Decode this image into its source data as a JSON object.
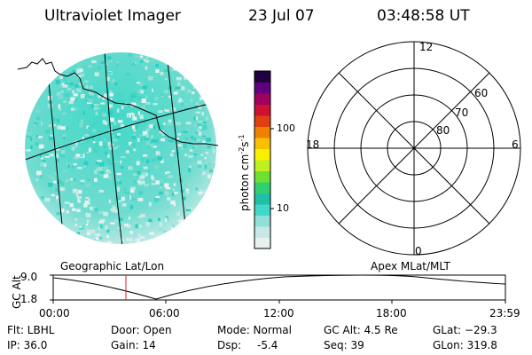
{
  "header": {
    "title": "Ultraviolet Imager",
    "date": "23 Jul 07",
    "time": "03:48:58 UT"
  },
  "left_panel": {
    "caption": "Geographic Lat/Lon"
  },
  "right_panel": {
    "caption": "Apex MLat/MLT",
    "mlt_labels": [
      "12",
      "18",
      "6",
      "0"
    ],
    "lat_labels": [
      "80",
      "70",
      "60"
    ]
  },
  "colorbar": {
    "unit_label": "photon cm",
    "unit_sup1": "-2",
    "unit_mid": "s",
    "unit_sup2": "-1",
    "ticks": [
      "100",
      "10"
    ],
    "colors": [
      "#e8f0f0",
      "#c8e8e8",
      "#90e0d8",
      "#40d8c8",
      "#20c0a8",
      "#30d070",
      "#70e030",
      "#c0f020",
      "#f8f000",
      "#f8c000",
      "#f08000",
      "#e04010",
      "#d01030",
      "#a00060",
      "#600080",
      "#200040"
    ]
  },
  "altitude_plot": {
    "ylabel": "GC Alt",
    "y_ticks": [
      "9.0",
      "1.8"
    ],
    "x_ticks": [
      "00:00",
      "06:00",
      "12:00",
      "18:00",
      "23:59"
    ]
  },
  "info": {
    "flt": "Flt: LBHL",
    "door": "Door: Open",
    "mode": "Mode: Normal",
    "gc_alt": "GC Alt: 4.5 Re",
    "glat": "GLat: −29.3",
    "ip": "IP: 36.0",
    "gain": "Gain: 14",
    "dsp_label": "Dsp:",
    "dsp_value": "-5.4",
    "seq": "Seq: 39",
    "glon": "GLon: 319.8"
  },
  "colors": {
    "foreground": "#000000",
    "background": "#ffffff",
    "marker": "#d02020",
    "dominant_emission": "#30d8c0"
  }
}
